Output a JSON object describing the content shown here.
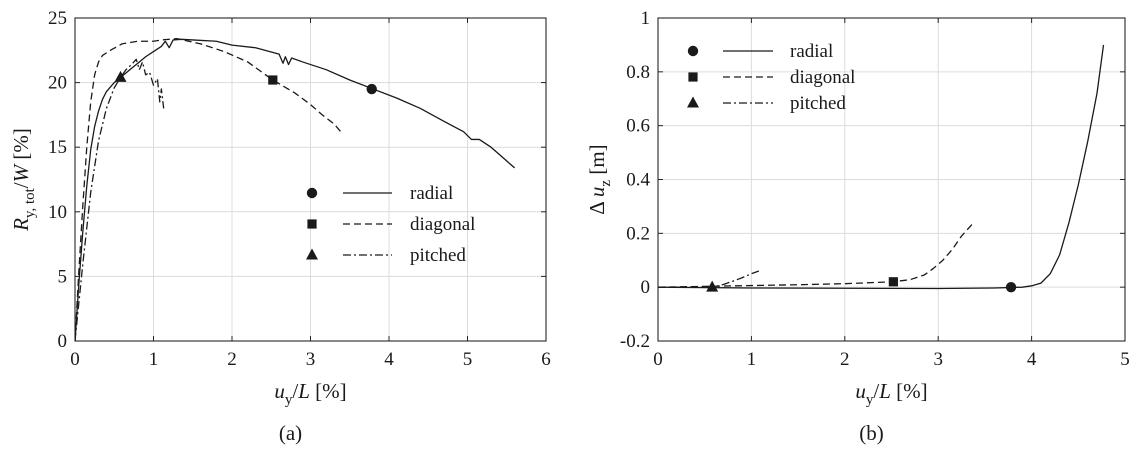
{
  "colors": {
    "line": "#1a1a1a",
    "grid": "#dcdcdc",
    "axis": "#262626",
    "background": "#ffffff"
  },
  "chart_data": [
    {
      "type": "line",
      "panel_label": "(a)",
      "xlabel": {
        "var": "u",
        "sub": "y",
        "rest": "/L [%]"
      },
      "ylabel": {
        "var": "R",
        "sub": "y, tot",
        "rest": "/W [%]"
      },
      "xlim": [
        0,
        6
      ],
      "ylim": [
        0,
        25
      ],
      "xticks": [
        0,
        1,
        2,
        3,
        4,
        5,
        6
      ],
      "yticks": [
        0,
        5,
        10,
        15,
        20,
        25
      ],
      "grid": true,
      "legend_position": "bottom-right",
      "series": [
        {
          "name": "radial",
          "dash": "solid",
          "marker": "circle",
          "marker_point": [
            3.78,
            19.5
          ],
          "points": [
            [
              0,
              0
            ],
            [
              0.05,
              4.5
            ],
            [
              0.1,
              8.5
            ],
            [
              0.15,
              12.0
            ],
            [
              0.2,
              14.8
            ],
            [
              0.25,
              16.6
            ],
            [
              0.3,
              17.8
            ],
            [
              0.35,
              18.7
            ],
            [
              0.4,
              19.3
            ],
            [
              0.5,
              20.0
            ],
            [
              0.6,
              20.5
            ],
            [
              0.7,
              21.0
            ],
            [
              0.8,
              21.5
            ],
            [
              0.9,
              22.0
            ],
            [
              1.0,
              22.4
            ],
            [
              1.1,
              22.8
            ],
            [
              1.15,
              23.2
            ],
            [
              1.2,
              22.7
            ],
            [
              1.25,
              23.3
            ],
            [
              1.35,
              23.35
            ],
            [
              1.5,
              23.3
            ],
            [
              1.8,
              23.2
            ],
            [
              2.0,
              22.9
            ],
            [
              2.3,
              22.7
            ],
            [
              2.6,
              22.2
            ],
            [
              2.65,
              21.5
            ],
            [
              2.68,
              22.0
            ],
            [
              2.72,
              21.4
            ],
            [
              2.76,
              21.9
            ],
            [
              2.9,
              21.6
            ],
            [
              3.2,
              21.0
            ],
            [
              3.5,
              20.2
            ],
            [
              3.8,
              19.5
            ],
            [
              4.1,
              18.8
            ],
            [
              4.4,
              18.0
            ],
            [
              4.7,
              17.0
            ],
            [
              4.95,
              16.2
            ],
            [
              5.05,
              15.6
            ],
            [
              5.15,
              15.6
            ],
            [
              5.3,
              15.0
            ],
            [
              5.45,
              14.2
            ],
            [
              5.6,
              13.4
            ]
          ]
        },
        {
          "name": "diagonal",
          "dash": "dashed",
          "marker": "square",
          "marker_point": [
            2.52,
            20.2
          ],
          "points": [
            [
              0,
              0
            ],
            [
              0.05,
              5.5
            ],
            [
              0.1,
              10.5
            ],
            [
              0.15,
              15.0
            ],
            [
              0.2,
              18.5
            ],
            [
              0.25,
              20.6
            ],
            [
              0.3,
              21.6
            ],
            [
              0.35,
              22.1
            ],
            [
              0.45,
              22.5
            ],
            [
              0.6,
              23.0
            ],
            [
              0.8,
              23.2
            ],
            [
              1.0,
              23.2
            ],
            [
              1.1,
              23.3
            ],
            [
              1.3,
              23.4
            ],
            [
              1.6,
              23.0
            ],
            [
              1.9,
              22.4
            ],
            [
              2.2,
              21.6
            ],
            [
              2.52,
              20.2
            ],
            [
              2.8,
              19.2
            ],
            [
              3.0,
              18.3
            ],
            [
              3.15,
              17.5
            ],
            [
              3.3,
              16.8
            ],
            [
              3.4,
              16.1
            ]
          ]
        },
        {
          "name": "pitched",
          "dash": "dashdot",
          "marker": "triangle",
          "marker_point": [
            0.58,
            20.4
          ],
          "points": [
            [
              0,
              0
            ],
            [
              0.1,
              6.0
            ],
            [
              0.2,
              11.5
            ],
            [
              0.3,
              15.5
            ],
            [
              0.4,
              18.0
            ],
            [
              0.5,
              19.6
            ],
            [
              0.58,
              20.4
            ],
            [
              0.65,
              21.0
            ],
            [
              0.72,
              21.4
            ],
            [
              0.78,
              21.8
            ],
            [
              0.82,
              21.0
            ],
            [
              0.86,
              21.6
            ],
            [
              0.9,
              20.6
            ],
            [
              0.95,
              20.8
            ],
            [
              1.0,
              19.8
            ],
            [
              1.05,
              20.3
            ],
            [
              1.08,
              18.5
            ],
            [
              1.1,
              19.5
            ],
            [
              1.13,
              18.0
            ]
          ]
        }
      ]
    },
    {
      "type": "line",
      "panel_label": "(b)",
      "xlabel": {
        "var": "u",
        "sub": "y",
        "rest": "/L [%]"
      },
      "ylabel": {
        "prefix": "Δ",
        "var": "u",
        "sub": "z",
        "rest": " [m]"
      },
      "xlim": [
        0,
        5
      ],
      "ylim": [
        -0.2,
        1
      ],
      "xticks": [
        0,
        1,
        2,
        3,
        4,
        5
      ],
      "yticks": [
        -0.2,
        0,
        0.2,
        0.4,
        0.6,
        0.8,
        1
      ],
      "grid": true,
      "legend_position": "top-left",
      "series": [
        {
          "name": "radial",
          "dash": "solid",
          "marker": "circle",
          "marker_point": [
            3.78,
            0.0
          ],
          "points": [
            [
              0,
              0
            ],
            [
              1.0,
              -0.003
            ],
            [
              2.0,
              -0.004
            ],
            [
              3.0,
              -0.005
            ],
            [
              3.6,
              -0.003
            ],
            [
              3.9,
              0.0
            ],
            [
              4.0,
              0.005
            ],
            [
              4.1,
              0.015
            ],
            [
              4.2,
              0.05
            ],
            [
              4.3,
              0.12
            ],
            [
              4.4,
              0.24
            ],
            [
              4.5,
              0.38
            ],
            [
              4.6,
              0.54
            ],
            [
              4.7,
              0.72
            ],
            [
              4.77,
              0.9
            ]
          ]
        },
        {
          "name": "diagonal",
          "dash": "dashed",
          "marker": "square",
          "marker_point": [
            2.52,
            0.02
          ],
          "points": [
            [
              0,
              0
            ],
            [
              0.5,
              0.003
            ],
            [
              1.0,
              0.006
            ],
            [
              1.5,
              0.009
            ],
            [
              2.0,
              0.013
            ],
            [
              2.52,
              0.02
            ],
            [
              2.7,
              0.028
            ],
            [
              2.85,
              0.045
            ],
            [
              2.95,
              0.07
            ],
            [
              3.05,
              0.1
            ],
            [
              3.15,
              0.14
            ],
            [
              3.25,
              0.19
            ],
            [
              3.38,
              0.24
            ]
          ]
        },
        {
          "name": "pitched",
          "dash": "dashdot",
          "marker": "triangle",
          "marker_point": [
            0.58,
            0.0
          ],
          "points": [
            [
              0,
              0
            ],
            [
              0.5,
              0.0
            ],
            [
              0.58,
              0.0
            ],
            [
              0.7,
              0.01
            ],
            [
              0.8,
              0.022
            ],
            [
              0.9,
              0.035
            ],
            [
              1.0,
              0.05
            ],
            [
              1.08,
              0.06
            ]
          ]
        }
      ]
    }
  ]
}
